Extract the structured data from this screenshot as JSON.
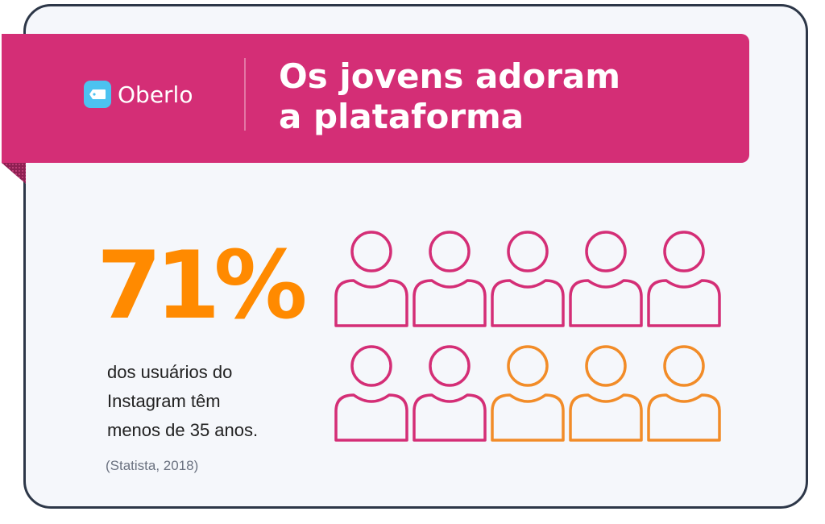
{
  "header": {
    "brand": "Oberlo",
    "brand_icon": "price-tag-icon",
    "title_line1": "Os jovens adoram",
    "title_line2": "a plataforma"
  },
  "stat": {
    "value": "71%",
    "desc_line1": "dos usuários do",
    "desc_line2": "Instagram têm",
    "desc_line3": "menos de 35 anos.",
    "source": "(Statista, 2018)"
  },
  "people_chart": {
    "total": 10,
    "highlighted": 7,
    "highlight_color": "#d42e76",
    "other_color": "#f28c28"
  },
  "colors": {
    "banner": "#d42e76",
    "accent": "#ff8a00",
    "logo": "#4cc2f0"
  }
}
